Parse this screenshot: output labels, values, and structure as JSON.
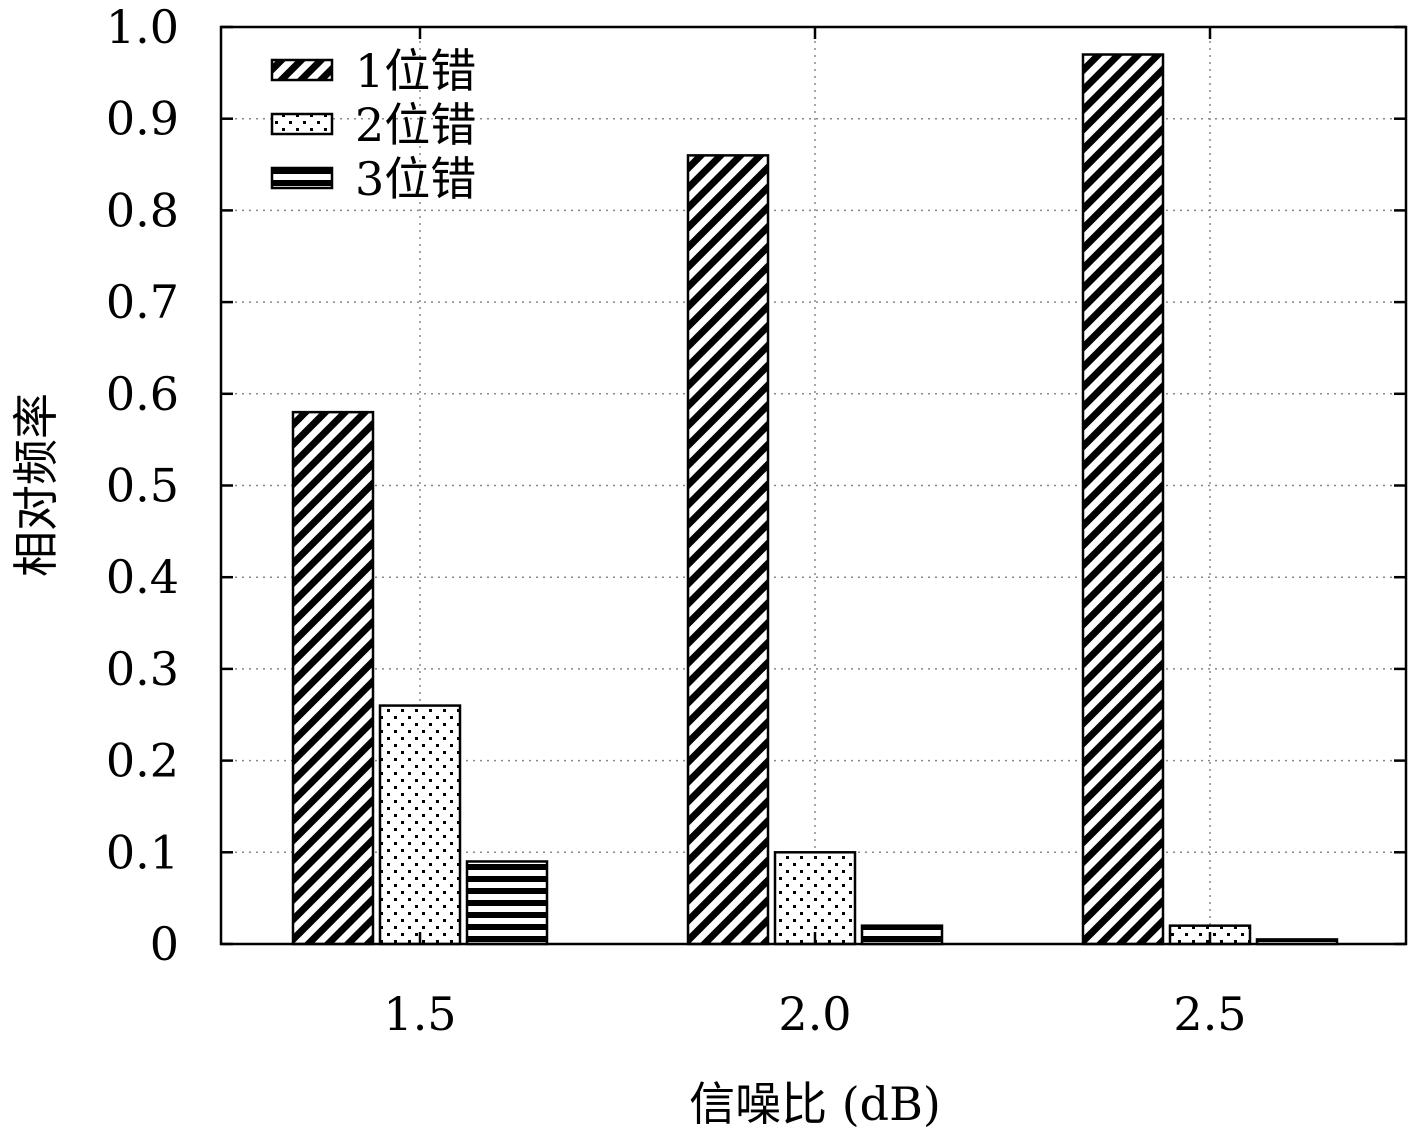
{
  "chart_data": {
    "type": "bar",
    "title": "",
    "xlabel": "信噪比 (dB)",
    "ylabel": "相对频率",
    "categories": [
      "1.5",
      "2.0",
      "2.5"
    ],
    "series": [
      {
        "name": "1位错",
        "values": [
          0.58,
          0.86,
          0.97
        ],
        "pattern": "diagonal-hatch"
      },
      {
        "name": "2位错",
        "values": [
          0.26,
          0.1,
          0.02
        ],
        "pattern": "dots"
      },
      {
        "name": "3位错",
        "values": [
          0.09,
          0.02,
          0.005
        ],
        "pattern": "horizontal-lines"
      }
    ],
    "ylim": [
      0,
      1.0
    ],
    "yticks": [
      "0",
      "0.1",
      "0.2",
      "0.3",
      "0.4",
      "0.5",
      "0.6",
      "0.7",
      "0.8",
      "0.9",
      "1.0"
    ],
    "grid": true,
    "legend_position": "top-left",
    "colors": {
      "stroke": "#000000",
      "fill": "#ffffff",
      "grid": "#888888"
    }
  }
}
